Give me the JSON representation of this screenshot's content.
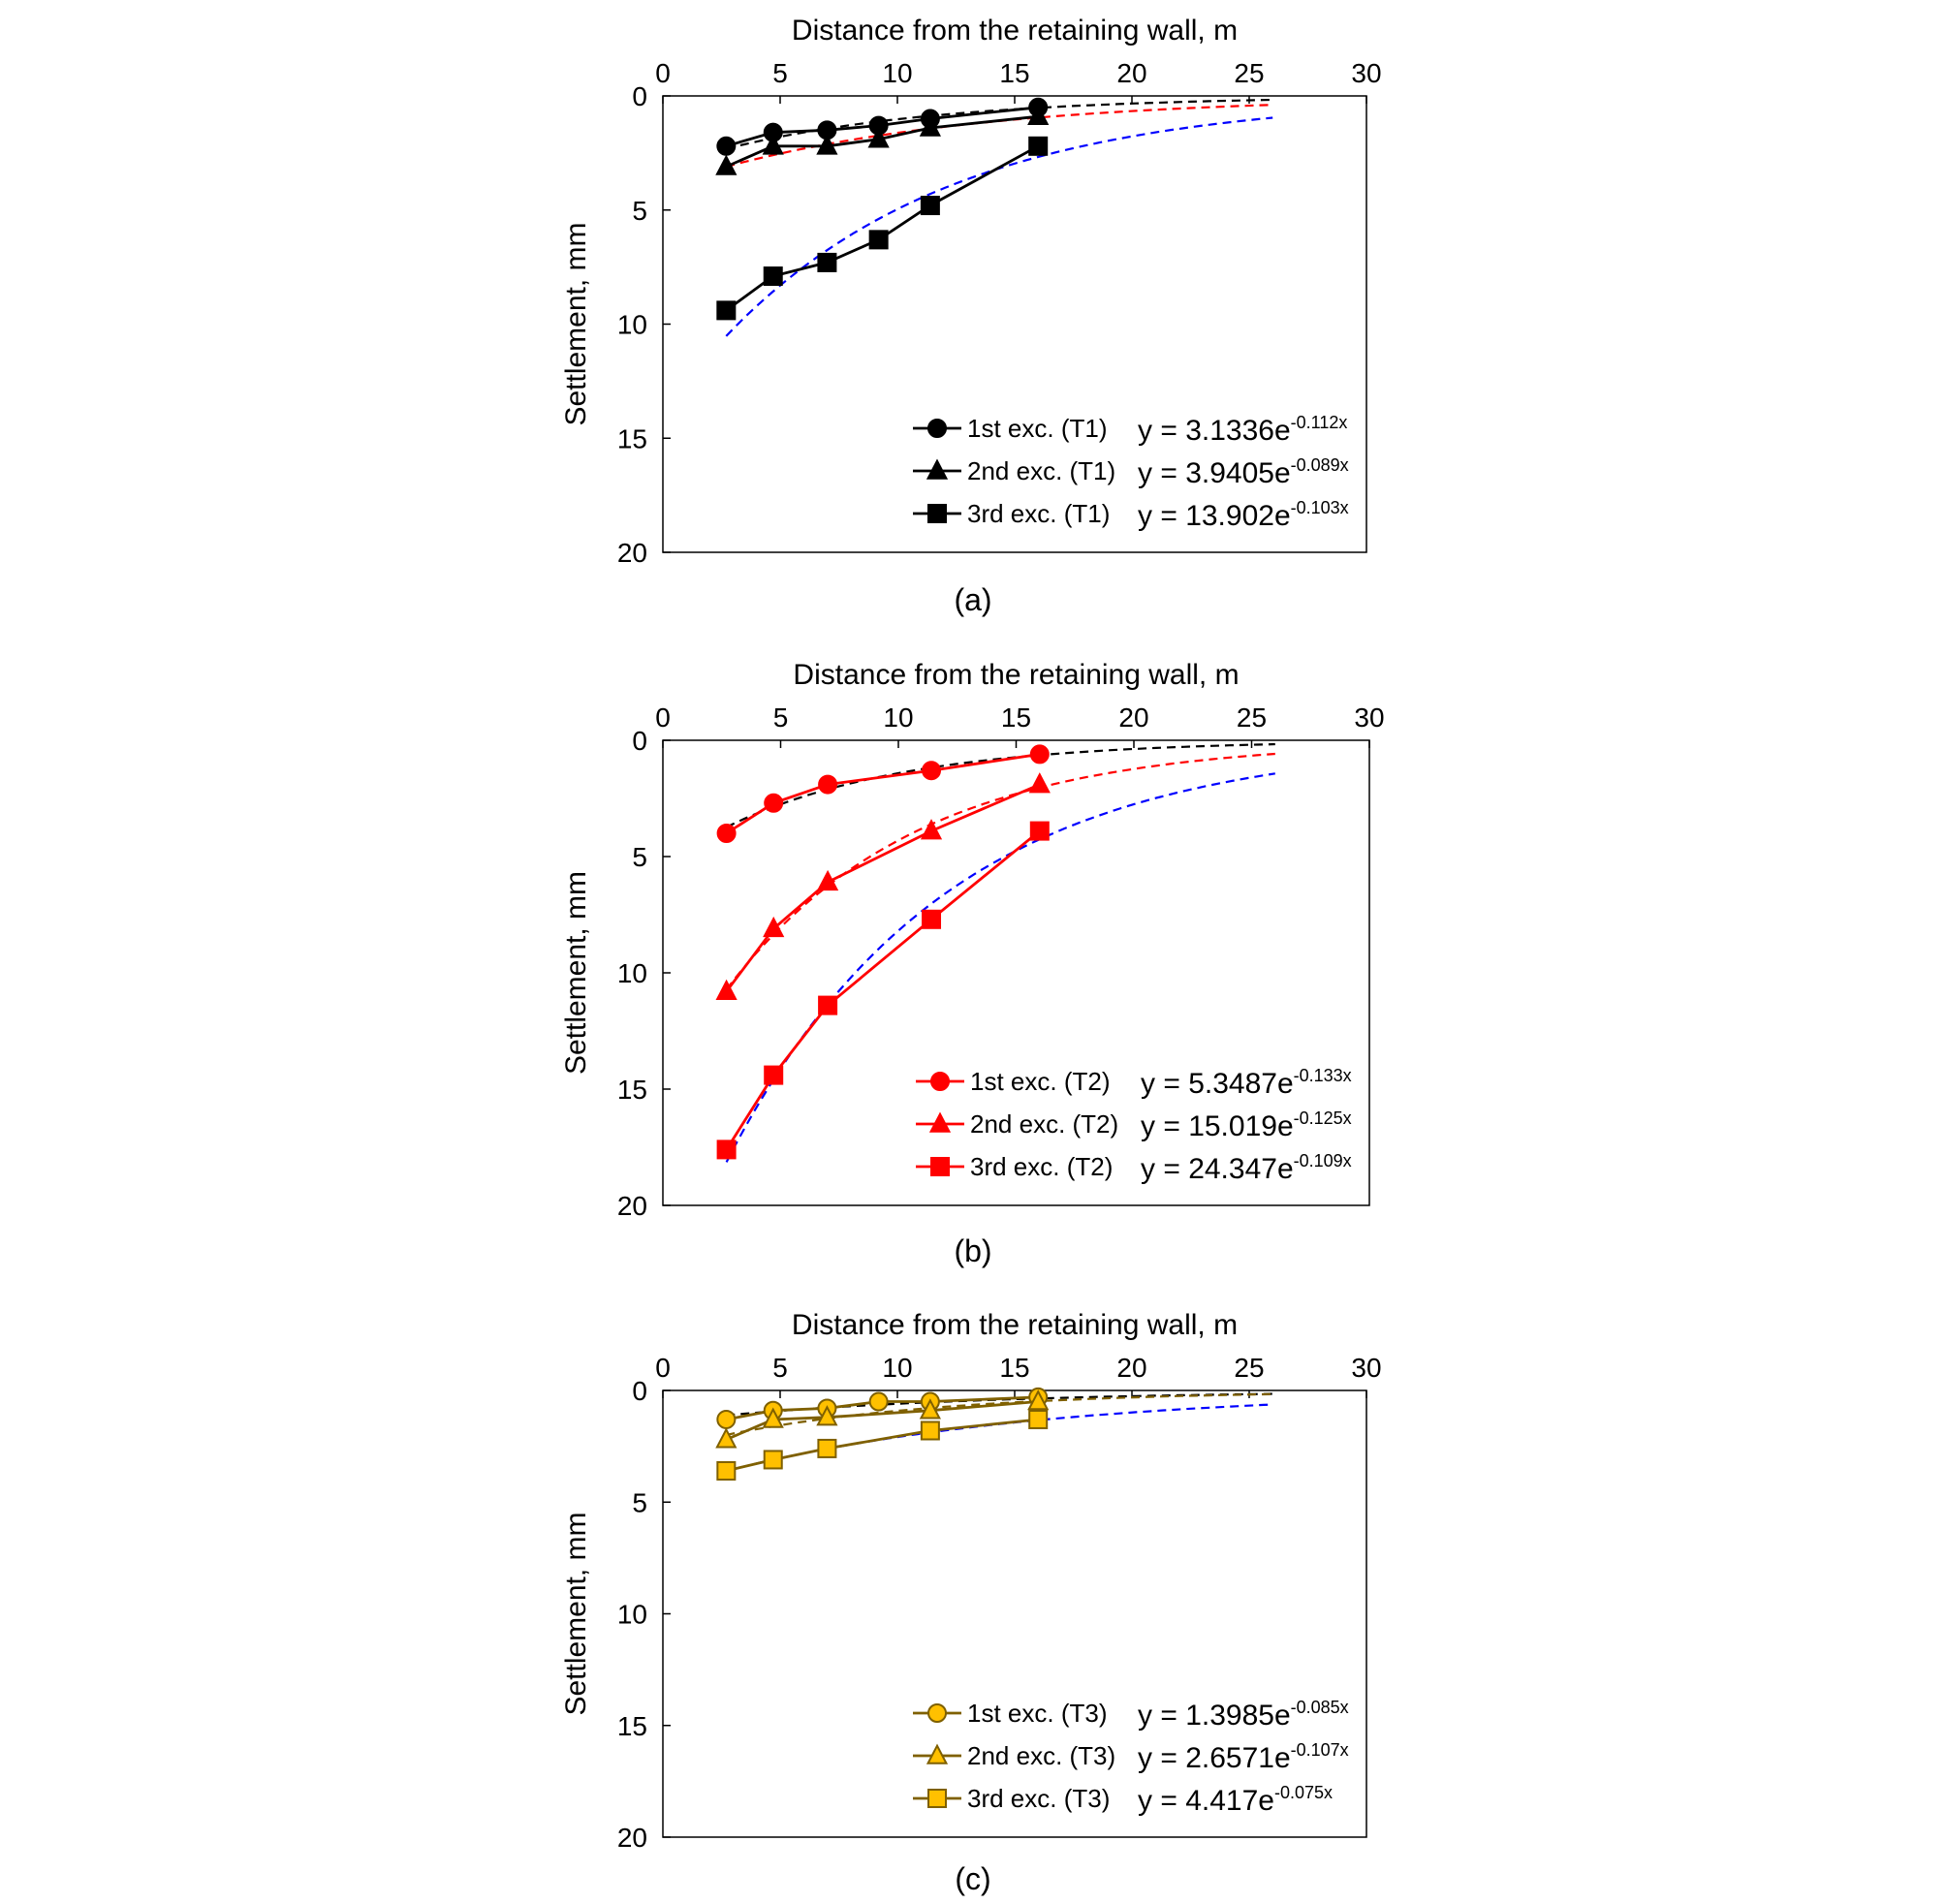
{
  "chart_data": [
    {
      "type": "line",
      "panel_label": "(a)",
      "xlabel": "Distance from the retaining wall, m",
      "ylabel": "Settlement, mm",
      "xlim": [
        0,
        30
      ],
      "ylim": [
        0,
        20
      ],
      "y_inverted": true,
      "x_axis_position": "top",
      "grid": false,
      "legend_position": "bottom-right",
      "xticks": [
        "0",
        "5",
        "10",
        "15",
        "20",
        "25",
        "30"
      ],
      "yticks": [
        "0",
        "5",
        "10",
        "15",
        "20"
      ],
      "series": [
        {
          "name": "1st exc. (T1)",
          "marker": "circle",
          "color": "#000000",
          "fill": "#000000",
          "x": [
            2.7,
            4.7,
            7.0,
            9.2,
            11.4,
            16.0
          ],
          "y": [
            2.2,
            1.6,
            1.5,
            1.3,
            1.0,
            0.5
          ],
          "fit": {
            "equation": "y = 3.1336e",
            "exponent": "-0.112x",
            "a": 3.1336,
            "b": -0.112,
            "color": "#000000"
          }
        },
        {
          "name": "2nd exc. (T1)",
          "marker": "triangle",
          "color": "#000000",
          "fill": "#000000",
          "x": [
            2.7,
            4.7,
            7.0,
            9.2,
            11.4,
            16.0
          ],
          "y": [
            3.1,
            2.2,
            2.2,
            1.9,
            1.4,
            0.9
          ],
          "fit": {
            "equation": "y = 3.9405e",
            "exponent": "-0.089x",
            "a": 3.9405,
            "b": -0.089,
            "color": "#ff0000"
          }
        },
        {
          "name": "3rd exc. (T1)",
          "marker": "square",
          "color": "#000000",
          "fill": "#000000",
          "x": [
            2.7,
            4.7,
            7.0,
            9.2,
            11.4,
            16.0
          ],
          "y": [
            9.4,
            7.9,
            7.3,
            6.3,
            4.8,
            2.2
          ],
          "fit": {
            "equation": "y = 13.902e",
            "exponent": "-0.103x",
            "a": 13.902,
            "b": -0.103,
            "color": "#0000ff"
          }
        }
      ]
    },
    {
      "type": "line",
      "panel_label": "(b)",
      "xlabel": "Distance from the retaining wall, m",
      "ylabel": "Settlement, mm",
      "xlim": [
        0,
        30
      ],
      "ylim": [
        0,
        20
      ],
      "y_inverted": true,
      "x_axis_position": "top",
      "grid": false,
      "legend_position": "bottom-right",
      "xticks": [
        "0",
        "5",
        "10",
        "15",
        "20",
        "25",
        "30"
      ],
      "yticks": [
        "0",
        "5",
        "10",
        "15",
        "20"
      ],
      "series": [
        {
          "name": "1st exc. (T2)",
          "marker": "circle",
          "color": "#ff0000",
          "fill": "#ff0000",
          "x": [
            2.7,
            4.7,
            7.0,
            11.4,
            16.0
          ],
          "y": [
            4.0,
            2.7,
            1.9,
            1.3,
            0.6
          ],
          "fit": {
            "equation": "y = 5.3487e",
            "exponent": "-0.133x",
            "a": 5.3487,
            "b": -0.133,
            "color": "#000000"
          }
        },
        {
          "name": "2nd exc. (T2)",
          "marker": "triangle",
          "color": "#ff0000",
          "fill": "#ff0000",
          "x": [
            2.7,
            4.7,
            7.0,
            11.4,
            16.0
          ],
          "y": [
            10.8,
            8.1,
            6.1,
            3.9,
            1.9
          ],
          "fit": {
            "equation": "y = 15.019e",
            "exponent": "-0.125x",
            "a": 15.019,
            "b": -0.125,
            "color": "#ff0000"
          }
        },
        {
          "name": "3rd exc. (T2)",
          "marker": "square",
          "color": "#ff0000",
          "fill": "#ff0000",
          "x": [
            2.7,
            4.7,
            7.0,
            11.4,
            16.0
          ],
          "y": [
            17.6,
            14.4,
            11.4,
            7.7,
            3.9
          ],
          "fit": {
            "equation": "y = 24.347e",
            "exponent": "-0.109x",
            "a": 24.347,
            "b": -0.109,
            "color": "#0000ff"
          }
        }
      ]
    },
    {
      "type": "line",
      "panel_label": "(c)",
      "xlabel": "Distance from the retaining wall, m",
      "ylabel": "Settlement, mm",
      "xlim": [
        0,
        30
      ],
      "ylim": [
        0,
        20
      ],
      "y_inverted": true,
      "x_axis_position": "top",
      "grid": false,
      "legend_position": "bottom-right",
      "xticks": [
        "0",
        "5",
        "10",
        "15",
        "20",
        "25",
        "30"
      ],
      "yticks": [
        "0",
        "5",
        "10",
        "15",
        "20"
      ],
      "series": [
        {
          "name": "1st exc. (T3)",
          "marker": "circle",
          "color": "#7f6000",
          "fill": "#ffc000",
          "x": [
            2.7,
            4.7,
            7.0,
            9.2,
            11.4,
            16.0
          ],
          "y": [
            1.3,
            0.9,
            0.8,
            0.5,
            0.5,
            0.3
          ],
          "fit": {
            "equation": "y = 1.3985e",
            "exponent": "-0.085x",
            "a": 1.3985,
            "b": -0.085,
            "color": "#000000"
          }
        },
        {
          "name": "2nd exc. (T3)",
          "marker": "triangle",
          "color": "#7f6000",
          "fill": "#ffc000",
          "x": [
            2.7,
            4.7,
            7.0,
            11.4,
            16.0
          ],
          "y": [
            2.2,
            1.3,
            1.2,
            0.9,
            0.5
          ],
          "fit": {
            "equation": "y = 2.6571e",
            "exponent": "-0.107x",
            "a": 2.6571,
            "b": -0.107,
            "color": "#7f6000"
          }
        },
        {
          "name": "3rd exc. (T3)",
          "marker": "square",
          "color": "#7f6000",
          "fill": "#ffc000",
          "x": [
            2.7,
            4.7,
            7.0,
            11.4,
            16.0
          ],
          "y": [
            3.6,
            3.1,
            2.6,
            1.8,
            1.3
          ],
          "fit": {
            "equation": "y = 4.417e",
            "exponent": "-0.075x",
            "a": 4.417,
            "b": -0.075,
            "color": "#0000ff"
          }
        }
      ]
    }
  ]
}
